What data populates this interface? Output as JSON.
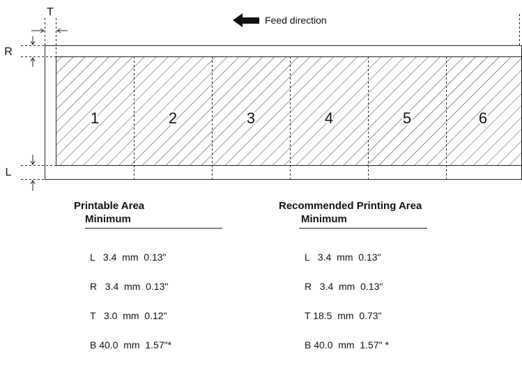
{
  "feed_label": "Feed direction",
  "margin_labels": {
    "T": "T",
    "R": "R",
    "L": "L"
  },
  "labels": [
    "1",
    "2",
    "3",
    "4",
    "5",
    "6"
  ],
  "printable": {
    "title": "Printable Area",
    "subtitle": "Minimum",
    "rows": [
      "L   3.4  mm  0.13\"",
      "R   3.4  mm  0.13\"",
      "T   3.0  mm  0.12\"",
      "B 40.0  mm  1.57\"*"
    ]
  },
  "recommended": {
    "title": "Recommended Printing Area",
    "subtitle": "Minimum",
    "rows": [
      "L   3.4  mm  0.13\"",
      "R   3.4  mm  0.13\"",
      "T 18.5  mm  0.73\"",
      "B 40.0  mm  1.57\" *"
    ]
  }
}
